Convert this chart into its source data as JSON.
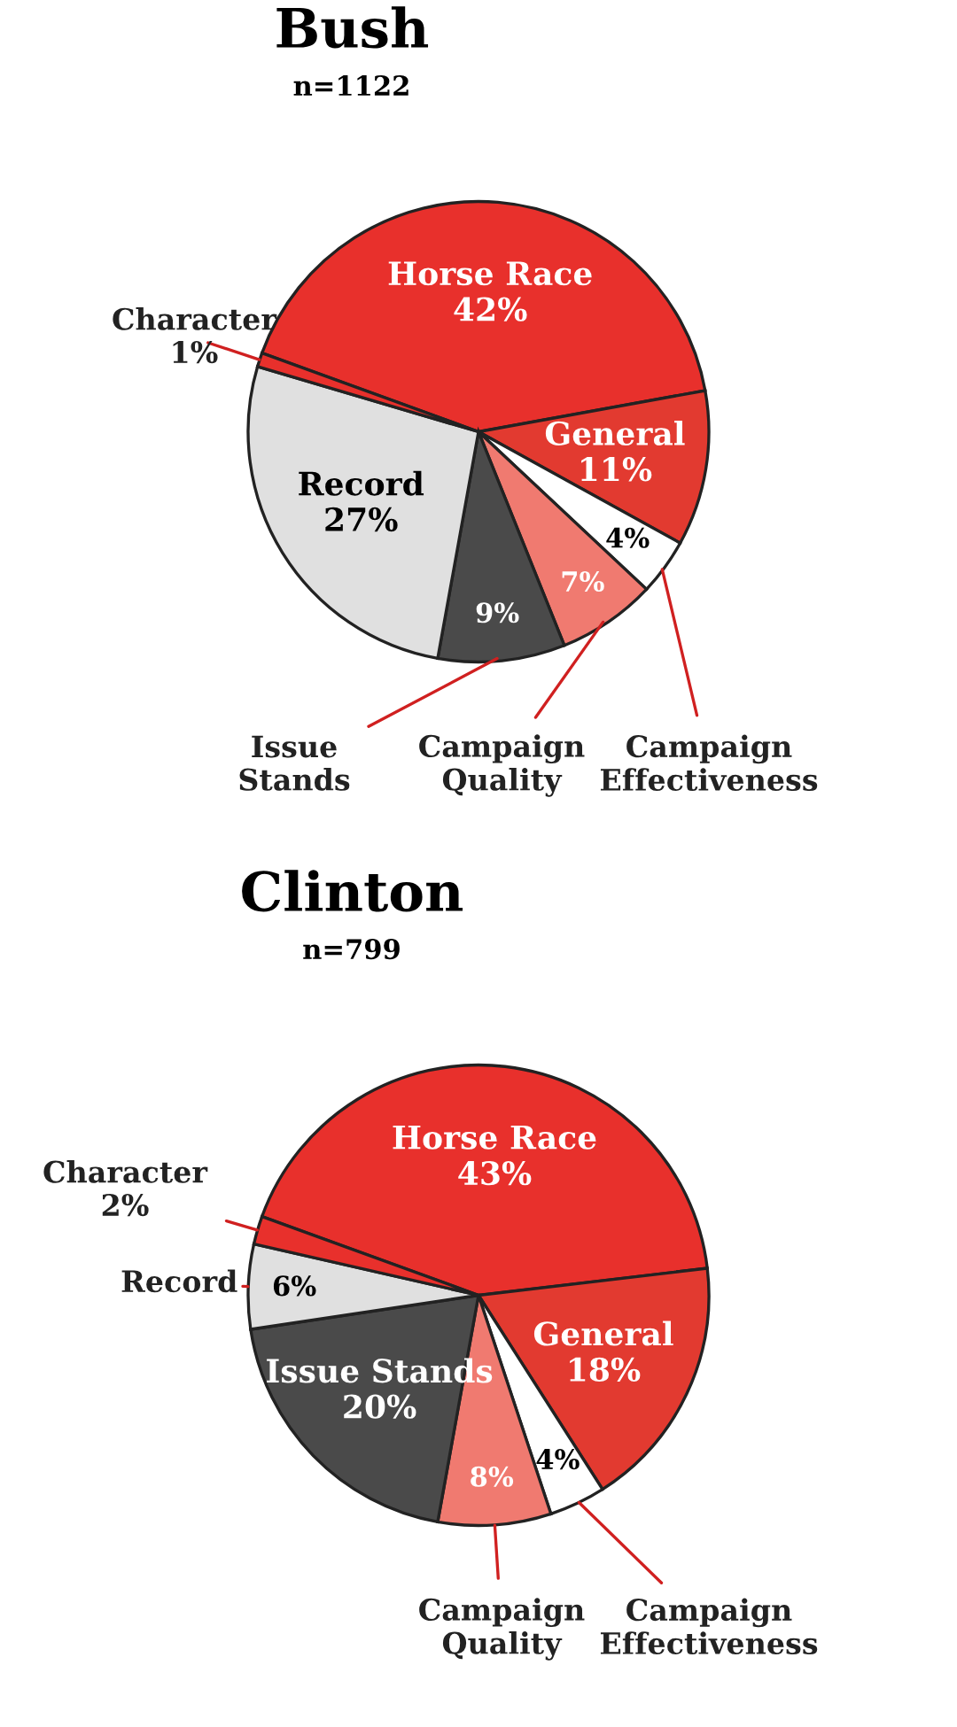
{
  "chart_data": [
    {
      "type": "pie",
      "title": "Bush",
      "subtitle": "n=1122",
      "categories": [
        "Horse Race",
        "General",
        "Campaign Effectiveness",
        "Campaign Quality",
        "Issue Stands",
        "Record",
        "Character"
      ],
      "values": [
        42,
        11,
        4,
        7,
        9,
        27,
        1
      ],
      "value_labels": [
        "42%",
        "11%",
        "4%",
        "7%",
        "9%",
        "27%",
        "1%"
      ],
      "colors": [
        "#e8302c",
        "#e23a30",
        "#ffffff",
        "#f07a70",
        "#4a4a4a",
        "#e0e0e0",
        "#e8302c"
      ]
    },
    {
      "type": "pie",
      "title": "Clinton",
      "subtitle": "n=799",
      "categories": [
        "Horse Race",
        "General",
        "Campaign Effectiveness",
        "Campaign Quality",
        "Issue Stands",
        "Record",
        "Character"
      ],
      "values": [
        43,
        18,
        4,
        8,
        20,
        6,
        2
      ],
      "value_labels": [
        "43%",
        "18%",
        "4%",
        "8%",
        "20%",
        "6%",
        "2%"
      ],
      "colors": [
        "#e8302c",
        "#e23a30",
        "#ffffff",
        "#f07a70",
        "#4a4a4a",
        "#e0e0e0",
        "#e8302c"
      ]
    }
  ]
}
